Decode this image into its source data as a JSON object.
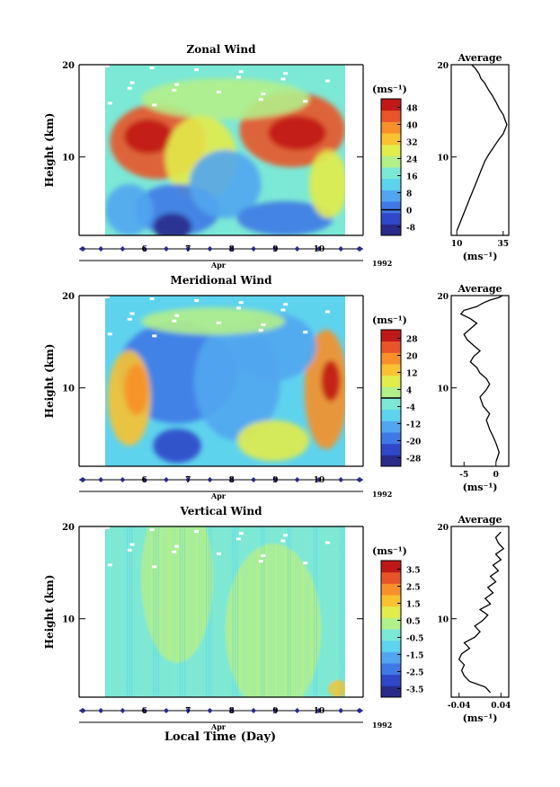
{
  "figure": {
    "year_label": "1992",
    "month_label": "Apr",
    "xlabel": "Local Time (Day)",
    "ylabel": "Height (km)",
    "unit_label": "(ms⁻¹)",
    "avg_title": "Average",
    "colors": [
      "#2a2a8a",
      "#2f47c8",
      "#3f79e6",
      "#52a6f0",
      "#5ed3ee",
      "#7ce8d6",
      "#b2f08a",
      "#e2ec4a",
      "#f8c230",
      "#f7902a",
      "#e8552a",
      "#c01818"
    ]
  },
  "chart_data": [
    {
      "type": "heatmap",
      "title": "Zonal Wind",
      "xlabel": "Apr",
      "ylabel": "Height (km)",
      "x_ticks": [
        "6",
        "7",
        "8",
        "9",
        "10"
      ],
      "xlim": [
        5.1,
        10.6
      ],
      "y_ticks": [
        "20",
        "10"
      ],
      "ylim": [
        1.5,
        20
      ],
      "colorbar_ticks": [
        "48",
        "40",
        "32",
        "24",
        "16",
        "8",
        "0",
        "-8"
      ],
      "colorbar_range": [
        -12,
        52
      ],
      "zero_line": 0,
      "profile": {
        "title": "Average",
        "xlabel": "(ms⁻¹)",
        "x_ticks": [
          "10",
          "35"
        ],
        "xlim": [
          7,
          38
        ],
        "ylim": [
          1.5,
          20
        ],
        "x": [
          10,
          11,
          13,
          15,
          17,
          19,
          21,
          23,
          25,
          27,
          29,
          31,
          33,
          35,
          36,
          37,
          36,
          35,
          33,
          31,
          29,
          27,
          25,
          23,
          22,
          21,
          20,
          19,
          18
        ],
        "y": [
          2,
          2.5,
          3.5,
          4.5,
          5.5,
          6.5,
          7.5,
          8.5,
          9.5,
          10.2,
          10.8,
          11.4,
          12,
          12.5,
          13,
          13.5,
          14,
          14.6,
          15.2,
          16,
          16.7,
          17.3,
          18,
          18.5,
          19,
          19.3,
          19.6,
          19.8,
          20
        ]
      }
    },
    {
      "type": "heatmap",
      "title": "Meridional Wind",
      "xlabel": "Apr",
      "ylabel": "Height (km)",
      "x_ticks": [
        "6",
        "7",
        "8",
        "9",
        "10"
      ],
      "xlim": [
        5.1,
        10.6
      ],
      "y_ticks": [
        "20",
        "10"
      ],
      "ylim": [
        1.5,
        20
      ],
      "colorbar_ticks": [
        "28",
        "20",
        "12",
        "4",
        "-4",
        "-12",
        "-20",
        "-28"
      ],
      "colorbar_range": [
        -32,
        32
      ],
      "zero_line": 0,
      "profile": {
        "title": "Average",
        "xlabel": "(ms⁻¹)",
        "x_ticks": [
          "-5",
          "0"
        ],
        "xlim": [
          -7,
          2
        ],
        "ylim": [
          1.5,
          20
        ],
        "x": [
          0,
          0.5,
          0,
          -0.5,
          -1,
          -1.5,
          -1,
          -2,
          -2.5,
          -1.5,
          -1,
          -1.5,
          -2.5,
          -3,
          -4,
          -3.5,
          -2.5,
          -3.5,
          -4.5,
          -5,
          -4,
          -3,
          -4,
          -5.5,
          -5,
          -3,
          -2,
          -1,
          0.5,
          1
        ],
        "y": [
          2,
          3,
          4,
          4.8,
          5.5,
          6.5,
          7.2,
          8,
          9,
          9.8,
          10.4,
          11,
          11.6,
          12.2,
          12.8,
          13.4,
          14,
          14.6,
          15.2,
          15.8,
          16.4,
          17,
          17.5,
          18,
          18.4,
          18.8,
          19.2,
          19.5,
          19.8,
          20
        ]
      }
    },
    {
      "type": "heatmap",
      "title": "Vertical Wind",
      "xlabel": "Apr",
      "ylabel": "Height (km)",
      "x_ticks": [
        "6",
        "7",
        "8",
        "9",
        "10"
      ],
      "xlim": [
        5.1,
        10.6
      ],
      "y_ticks": [
        "20",
        "10"
      ],
      "ylim": [
        1.5,
        20
      ],
      "colorbar_ticks": [
        "3.5",
        "2.5",
        "1.5",
        "0.5",
        "-0.5",
        "-1.5",
        "-2.5",
        "-3.5"
      ],
      "colorbar_range": [
        -4,
        4
      ],
      "zero_line": null,
      "profile": {
        "title": "Average",
        "xlabel": "(ms⁻¹)",
        "x_ticks": [
          "-0.04",
          "0.04"
        ],
        "xlim": [
          -0.055,
          0.055
        ],
        "ylim": [
          1.5,
          20
        ],
        "x": [
          0.02,
          0.01,
          -0.02,
          -0.03,
          -0.035,
          -0.03,
          -0.04,
          -0.035,
          -0.02,
          -0.03,
          -0.01,
          0,
          -0.01,
          0.005,
          0.015,
          0,
          0.02,
          0.01,
          0.025,
          0.015,
          0.03,
          0.02,
          0.035,
          0.025,
          0.04,
          0.03,
          0.045,
          0.035,
          0.03,
          0.04
        ],
        "y": [
          2,
          2.6,
          3.2,
          3.8,
          4.4,
          5,
          5.6,
          6.2,
          6.8,
          7.4,
          8,
          8.6,
          9.2,
          9.8,
          10.4,
          11,
          11.6,
          12.2,
          12.8,
          13.4,
          14,
          14.6,
          15.2,
          15.8,
          16.4,
          17,
          17.6,
          18.2,
          18.8,
          19.4
        ]
      }
    }
  ]
}
